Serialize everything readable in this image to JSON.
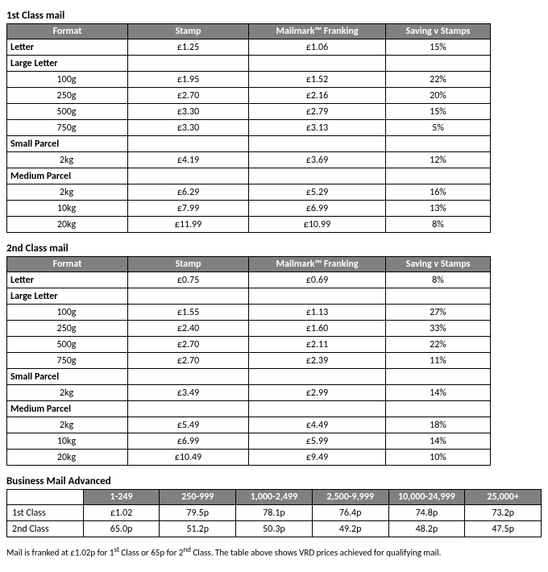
{
  "colors": {
    "header_bg": "#808080",
    "header_fg": "#ffffff",
    "border": "#000000",
    "background": "#ffffff",
    "text": "#000000"
  },
  "typography": {
    "font_family": "Calibri, Arial, sans-serif",
    "base_size_pt": 9,
    "title_size_pt": 10,
    "title_weight": "bold"
  },
  "tables": {
    "first_class": {
      "title": "1st Class mail",
      "columns": [
        "Format",
        "Stamp",
        "Mailmark™ Franking",
        "Saving v Stamps"
      ],
      "rows": [
        {
          "type": "data",
          "label": "Letter",
          "stamp": "£1.25",
          "franking": "£1.06",
          "saving": "15%"
        },
        {
          "type": "header",
          "label": "Large Letter"
        },
        {
          "type": "sub",
          "label": "100g",
          "stamp": "£1.95",
          "franking": "£1.52",
          "saving": "22%"
        },
        {
          "type": "sub",
          "label": "250g",
          "stamp": "£2.70",
          "franking": "£2.16",
          "saving": "20%"
        },
        {
          "type": "sub",
          "label": "500g",
          "stamp": "£3.30",
          "franking": "£2.79",
          "saving": "15%"
        },
        {
          "type": "sub",
          "label": "750g",
          "stamp": "£3.30",
          "franking": "£3.13",
          "saving": "5%"
        },
        {
          "type": "header",
          "label": "Small Parcel"
        },
        {
          "type": "sub",
          "label": "2kg",
          "stamp": "£4.19",
          "franking": "£3.69",
          "saving": "12%"
        },
        {
          "type": "header",
          "label": "Medium Parcel"
        },
        {
          "type": "sub",
          "label": "2kg",
          "stamp": "£6.29",
          "franking": "£5.29",
          "saving": "16%"
        },
        {
          "type": "sub",
          "label": "10kg",
          "stamp": "£7.99",
          "franking": "£6.99",
          "saving": "13%"
        },
        {
          "type": "sub",
          "label": "20kg",
          "stamp": "£11.99",
          "franking": "£10.99",
          "saving": "8%"
        }
      ]
    },
    "second_class": {
      "title": "2nd Class mail",
      "columns": [
        "Format",
        "Stamp",
        "Mailmark™ Franking",
        "Saving v Stamps"
      ],
      "rows": [
        {
          "type": "data",
          "label": "Letter",
          "stamp": "£0.75",
          "franking": "£0.69",
          "saving": "8%"
        },
        {
          "type": "header",
          "label": "Large Letter"
        },
        {
          "type": "sub",
          "label": "100g",
          "stamp": "£1.55",
          "franking": "£1.13",
          "saving": "27%"
        },
        {
          "type": "sub",
          "label": "250g",
          "stamp": "£2.40",
          "franking": "£1.60",
          "saving": "33%"
        },
        {
          "type": "sub",
          "label": "500g",
          "stamp": "£2.70",
          "franking": "£2.11",
          "saving": "22%"
        },
        {
          "type": "sub",
          "label": "750g",
          "stamp": "£2.70",
          "franking": "£2.39",
          "saving": "11%"
        },
        {
          "type": "header",
          "label": "Small Parcel"
        },
        {
          "type": "sub",
          "label": "2kg",
          "stamp": "£3.49",
          "franking": "£2.99",
          "saving": "14%"
        },
        {
          "type": "header",
          "label": "Medium Parcel"
        },
        {
          "type": "sub",
          "label": "2kg",
          "stamp": "£5.49",
          "franking": "£4.49",
          "saving": "18%"
        },
        {
          "type": "sub",
          "label": "10kg",
          "stamp": "£6.99",
          "franking": "£5.99",
          "saving": "14%"
        },
        {
          "type": "sub",
          "label": "20kg",
          "stamp": "£10.49",
          "franking": "£9.49",
          "saving": "10%"
        }
      ]
    },
    "bma": {
      "title": "Business Mail Advanced",
      "columns": [
        "1-249",
        "250-999",
        "1,000-2,499",
        "2,500-9,999",
        "10,000-24,999",
        "25,000+"
      ],
      "rows": [
        {
          "label": "1st Class",
          "values": [
            "£1.02",
            "79.5p",
            "78.1p",
            "76.4p",
            "74.8p",
            "73.2p"
          ]
        },
        {
          "label": "2nd Class",
          "values": [
            "65.0p",
            "51.2p",
            "50.3p",
            "49.2p",
            "48.2p",
            "47.5p"
          ]
        }
      ]
    }
  },
  "footnote_parts": {
    "a": "Mail is franked at £1.02p for 1",
    "b": " Class or 65p for 2",
    "c": " Class. The table above shows VRD prices achieved for qualifying mail.",
    "sup1": "st",
    "sup2": "nd"
  }
}
